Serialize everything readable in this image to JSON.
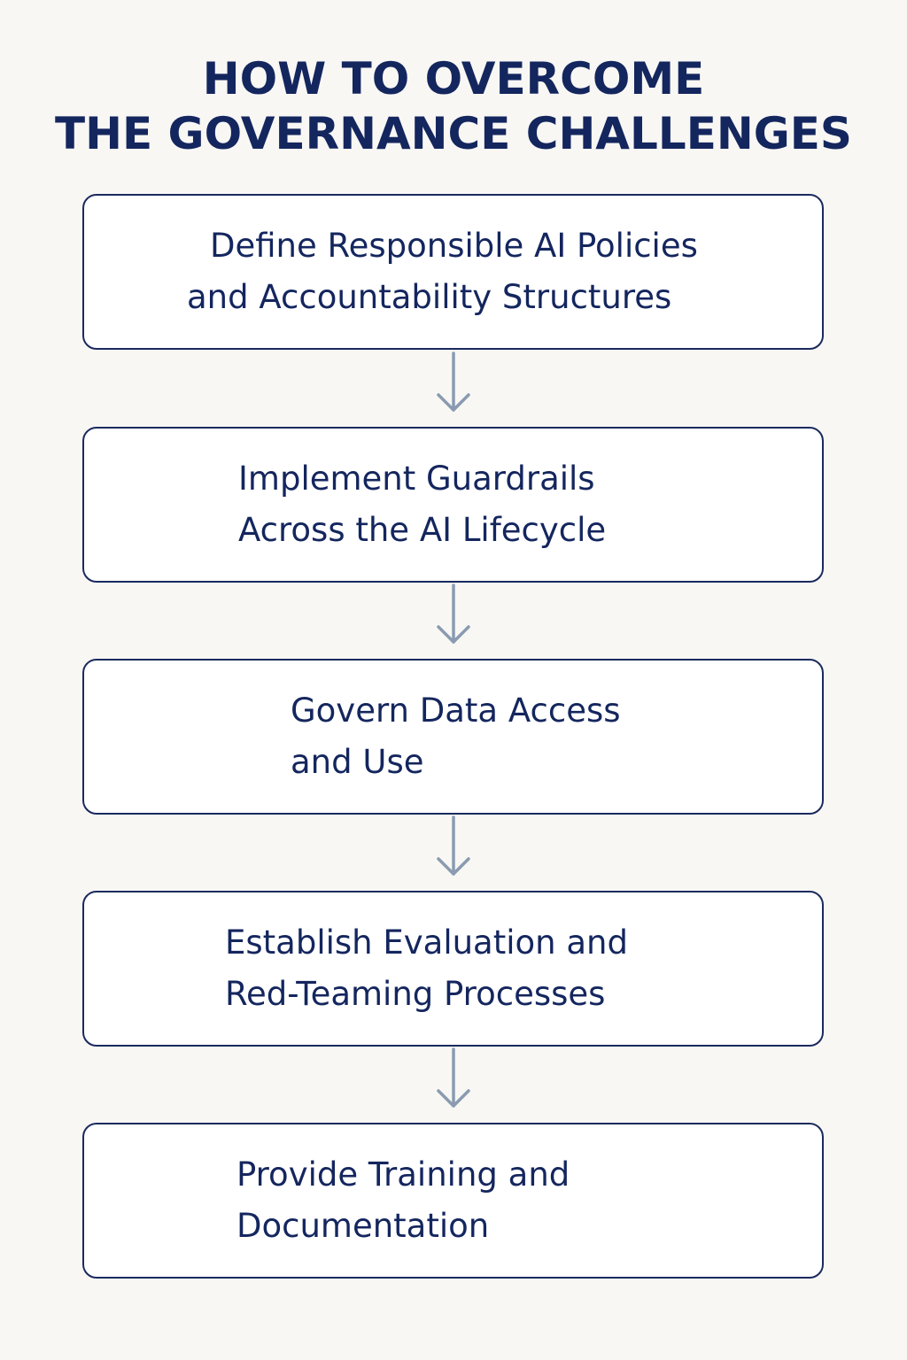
{
  "title": {
    "line1": "HOW TO OVERCOME",
    "line2": "THE GOVERNANCE CHALLENGES"
  },
  "steps": [
    {
      "line1": "Define Responsible AI Policies",
      "line2": "and Accountability Structures"
    },
    {
      "line1": "Implement Guardrails",
      "line2": "Across the AI Lifecycle"
    },
    {
      "line1": "Govern Data Access",
      "line2": "and Use"
    },
    {
      "line1": "Establish Evaluation and",
      "line2": "Red-Teaming Processes"
    },
    {
      "line1": "Provide Training and",
      "line2": "Documentation"
    }
  ],
  "colors": {
    "text": "#14265e",
    "border": "#1b2a5e",
    "arrow": "#8a9bb0",
    "background": "#f8f7f4"
  }
}
